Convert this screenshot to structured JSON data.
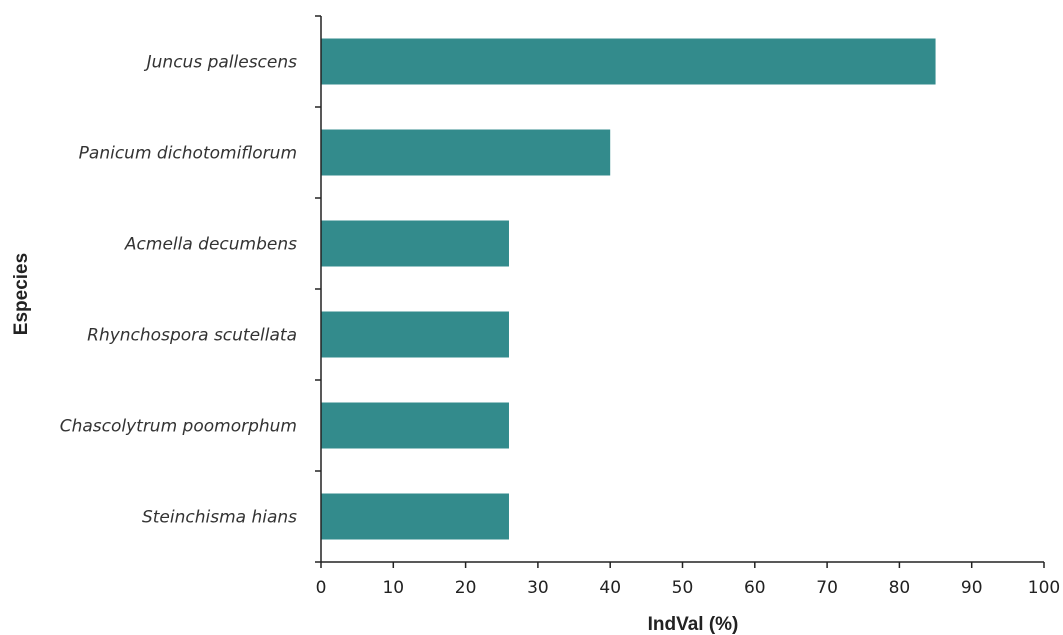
{
  "chart_data": {
    "type": "bar",
    "orientation": "horizontal",
    "categories": [
      "Juncus pallescens",
      "Panicum dichotomiflorum",
      "Acmella decumbens",
      "Rhynchospora scutellata",
      "Chascolytrum poomorphum",
      "Steinchisma hians"
    ],
    "values": [
      85,
      40,
      26,
      26,
      26,
      26
    ],
    "xlabel": "IndVal (%)",
    "ylabel": "Especies",
    "xlim": [
      0,
      100
    ],
    "xticks": [
      "0",
      "10",
      "20",
      "30",
      "40",
      "50",
      "60",
      "70",
      "80",
      "90",
      "100"
    ],
    "bar_color": "#338b8c",
    "grid": false,
    "legend": "none"
  }
}
